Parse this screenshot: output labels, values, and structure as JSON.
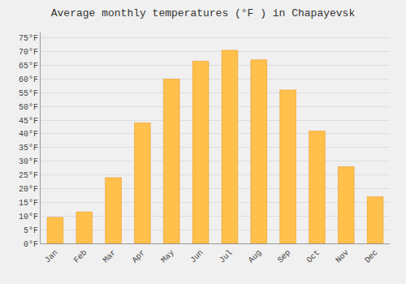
{
  "chart_data": {
    "type": "bar",
    "title": "Average monthly temperatures (°F ) in Chapayevsk",
    "categories": [
      "Jan",
      "Feb",
      "Mar",
      "Apr",
      "May",
      "Jun",
      "Jul",
      "Aug",
      "Sep",
      "Oct",
      "Nov",
      "Dec"
    ],
    "values": [
      9.5,
      11.5,
      24.0,
      44.0,
      60.0,
      66.5,
      70.5,
      67.0,
      56.0,
      41.0,
      28.0,
      17.0
    ],
    "color": "#FFC04C",
    "ylim": [
      0,
      77
    ],
    "yticks": [
      {
        "value": 0,
        "label": "0°F"
      },
      {
        "value": 5,
        "label": "5°F"
      },
      {
        "value": 10,
        "label": "10°F"
      },
      {
        "value": 15,
        "label": "15°F"
      },
      {
        "value": 20,
        "label": "20°F"
      },
      {
        "value": 25,
        "label": "25°F"
      },
      {
        "value": 30,
        "label": "30°F"
      },
      {
        "value": 35,
        "label": "35°F"
      },
      {
        "value": 40,
        "label": "40°F"
      },
      {
        "value": 45,
        "label": "45°F"
      },
      {
        "value": 50,
        "label": "50°F"
      },
      {
        "value": 55,
        "label": "55°F"
      },
      {
        "value": 60,
        "label": "60°F"
      },
      {
        "value": 65,
        "label": "65°F"
      },
      {
        "value": 70,
        "label": "70°F"
      },
      {
        "value": 75,
        "label": "75°F"
      }
    ],
    "grid": true
  }
}
